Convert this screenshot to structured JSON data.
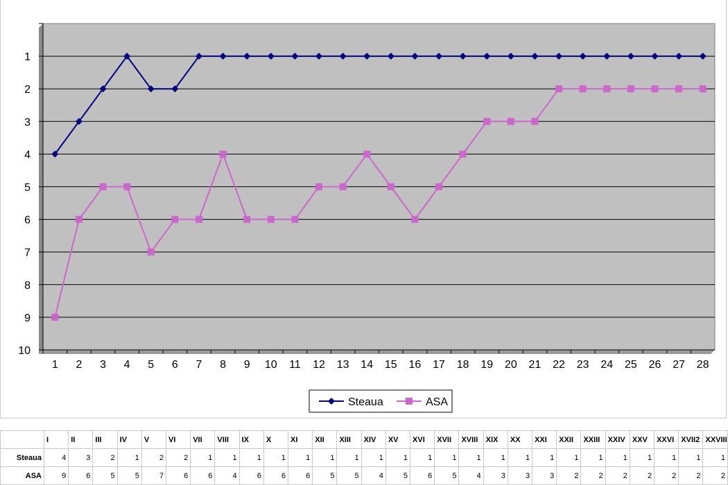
{
  "chart_data": {
    "type": "line",
    "x": [
      1,
      2,
      3,
      4,
      5,
      6,
      7,
      8,
      9,
      10,
      11,
      12,
      13,
      14,
      15,
      16,
      17,
      18,
      19,
      20,
      21,
      22,
      23,
      24,
      25,
      26,
      27,
      28
    ],
    "y_ticks": [
      1,
      2,
      3,
      4,
      5,
      6,
      7,
      8,
      9,
      10
    ],
    "ylim": [
      10,
      0
    ],
    "y_reversed": true,
    "grid": true,
    "legend_position": "bottom",
    "plot_background": "#c0c0c0",
    "series": [
      {
        "name": "Steaua",
        "color": "#000080",
        "marker": "diamond",
        "values": [
          4,
          3,
          2,
          1,
          2,
          2,
          1,
          1,
          1,
          1,
          1,
          1,
          1,
          1,
          1,
          1,
          1,
          1,
          1,
          1,
          1,
          1,
          1,
          1,
          1,
          1,
          1,
          1
        ]
      },
      {
        "name": "ASA",
        "color": "#cc66cc",
        "marker": "square",
        "values": [
          9,
          6,
          5,
          5,
          7,
          6,
          6,
          4,
          6,
          6,
          6,
          5,
          5,
          4,
          5,
          6,
          5,
          4,
          3,
          3,
          3,
          2,
          2,
          2,
          2,
          2,
          2,
          2
        ]
      }
    ]
  },
  "table": {
    "headers": [
      "I",
      "II",
      "III",
      "IV",
      "V",
      "VI",
      "VII",
      "VIII",
      "IX",
      "X",
      "XI",
      "XII",
      "XIII",
      "XIV",
      "XV",
      "XVI",
      "XVII",
      "XVIII",
      "XIX",
      "XX",
      "XXI",
      "XXII",
      "XXIII",
      "XXIV",
      "XXV",
      "XXVI",
      "XVII2",
      "XXVIII"
    ],
    "rows": [
      {
        "name": "Steaua",
        "values": [
          "4",
          "3",
          "2",
          "1",
          "2",
          "2",
          "1",
          "1",
          "1",
          "1",
          "1",
          "1",
          "1",
          "1",
          "1",
          "1",
          "1",
          "1",
          "1",
          "1",
          "1",
          "1",
          "1",
          "1",
          "1",
          "1",
          "1",
          "1"
        ]
      },
      {
        "name": "ASA",
        "values": [
          "9",
          "6",
          "5",
          "5",
          "7",
          "6",
          "6",
          "4",
          "6",
          "6",
          "6",
          "5",
          "5",
          "4",
          "5",
          "6",
          "5",
          "4",
          "3",
          "3",
          "3",
          "2",
          "2",
          "2",
          "2",
          "2",
          "2",
          "2"
        ]
      }
    ]
  }
}
